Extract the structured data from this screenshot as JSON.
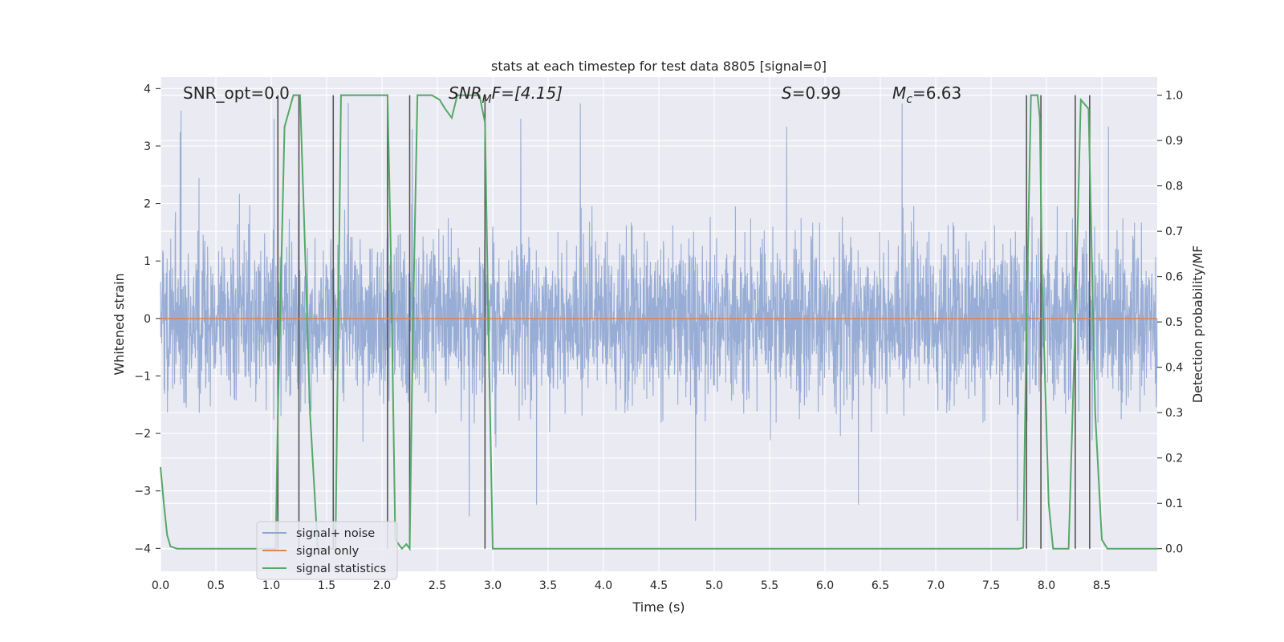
{
  "chart_data": {
    "type": "line",
    "title": "stats at each timestep for test data 8805 [signal=0]",
    "xlabel": "Time (s)",
    "ylabel_left": "Whitened strain",
    "ylabel_right": "Detection probability/MF",
    "xlim": [
      0.0,
      9.0
    ],
    "ylim_left": [
      -4.4,
      4.2
    ],
    "ylim_right": [
      -0.05,
      1.04
    ],
    "x_ticks": [
      "0.0",
      "0.5",
      "1.0",
      "1.5",
      "2.0",
      "2.5",
      "3.0",
      "3.5",
      "4.0",
      "4.5",
      "5.0",
      "5.5",
      "6.0",
      "6.5",
      "7.0",
      "7.5",
      "8.0",
      "8.5"
    ],
    "y_ticks_left": [
      "4",
      "3",
      "2",
      "1",
      "0",
      "−1",
      "−2",
      "−3",
      "−4"
    ],
    "y_ticks_right": [
      "1.0",
      "0.9",
      "0.8",
      "0.7",
      "0.6",
      "0.5",
      "0.4",
      "0.3",
      "0.2",
      "0.1",
      "0.0"
    ],
    "grid": true,
    "legend_position": "lower-left",
    "annotations": {
      "snr_opt": "SNR_opt=0.0",
      "snr_mf_main": "SNR",
      "snr_mf_sub": "M",
      "snr_mf_rest": "F=[4.15]",
      "s_var": "S",
      "s_rest": "=0.99",
      "mc_var": "M",
      "mc_sub": "c",
      "mc_rest": "=6.63"
    },
    "series": [
      {
        "name": "signal+ noise",
        "color": "#8fa6d2",
        "axis": "left",
        "description_values": {
          "typical_amplitude_range": [
            -2.0,
            2.0
          ],
          "extreme_range": [
            -4.0,
            3.8
          ]
        }
      },
      {
        "name": "signal only",
        "color": "#dd8452",
        "axis": "left",
        "x": [
          0.0,
          9.0
        ],
        "y": [
          0.0,
          0.0
        ]
      },
      {
        "name": "signal statistics",
        "color": "#55a868",
        "axis": "right",
        "x": [
          0.0,
          0.03,
          0.06,
          0.09,
          0.15,
          0.5,
          1.0,
          1.04,
          1.06,
          1.12,
          1.2,
          1.26,
          1.3,
          1.35,
          1.42,
          1.5,
          1.55,
          1.58,
          1.63,
          1.8,
          2.0,
          2.05,
          2.08,
          2.12,
          2.18,
          2.22,
          2.25,
          2.28,
          2.32,
          2.45,
          2.52,
          2.57,
          2.63,
          2.68,
          2.75,
          2.82,
          2.88,
          2.93,
          2.96,
          3.0,
          3.05,
          3.1,
          3.5,
          4.0,
          5.0,
          6.0,
          7.0,
          7.5,
          7.75,
          7.79,
          7.82,
          7.86,
          7.92,
          7.94,
          7.96,
          8.02,
          8.06,
          8.15,
          8.2,
          8.26,
          8.31,
          8.38,
          8.44,
          8.5,
          8.55,
          9.0
        ],
        "y": [
          0.18,
          0.1,
          0.03,
          0.005,
          0.0,
          0.0,
          0.0,
          0.0,
          0.3,
          0.93,
          1.0,
          1.0,
          0.7,
          0.3,
          0.0,
          0.0,
          0.0,
          0.0,
          1.0,
          1.0,
          1.0,
          1.0,
          0.65,
          0.02,
          0.0,
          0.01,
          0.0,
          0.5,
          1.0,
          1.0,
          0.99,
          0.97,
          0.95,
          1.0,
          1.0,
          1.0,
          1.0,
          0.94,
          0.5,
          0.0,
          0.0,
          0.0,
          0.0,
          0.0,
          0.0,
          0.0,
          0.0,
          0.0,
          0.0,
          0.002,
          0.5,
          1.0,
          1.0,
          0.95,
          0.6,
          0.1,
          0.0,
          0.0,
          0.0,
          0.5,
          0.99,
          0.97,
          0.3,
          0.02,
          0.0,
          0.0
        ]
      }
    ],
    "vertical_markers": {
      "color": "#555555",
      "x": [
        1.06,
        1.25,
        1.56,
        2.05,
        2.25,
        2.93,
        7.82,
        7.95,
        8.26,
        8.39
      ]
    }
  }
}
